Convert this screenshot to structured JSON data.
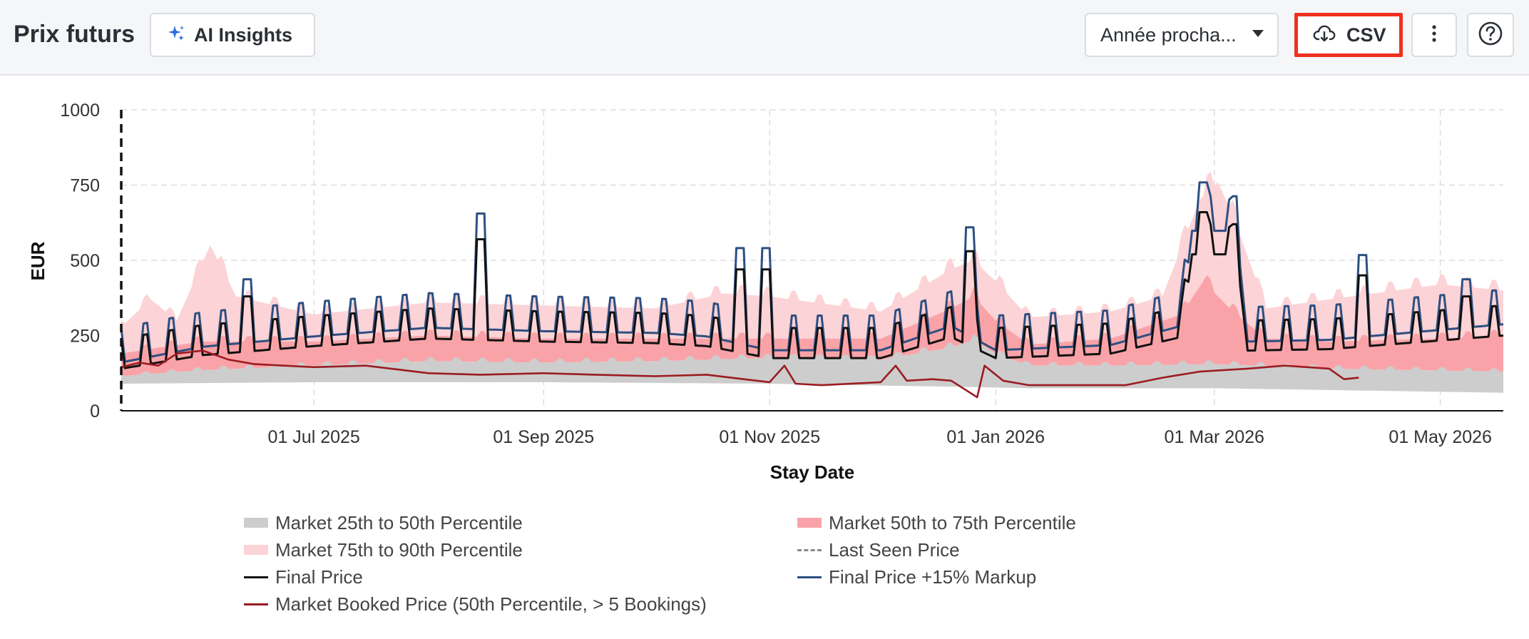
{
  "header": {
    "title": "Prix futurs",
    "ai_button_label": "AI Insights",
    "period_select_value": "Année procha...",
    "csv_button_label": "CSV"
  },
  "icons": {
    "ai": "sparkles-icon",
    "period": "caret-down-icon",
    "csv": "cloud-download-icon",
    "more": "kebab-menu-icon",
    "help": "question-circle-icon"
  },
  "colors": {
    "p25_50": "#cdcdcd",
    "p50_75": "#f9a3a8",
    "p75_90": "#fcd3d6",
    "final": "#111111",
    "markup": "#2d4f82",
    "booked": "#9b1c22",
    "last_seen": "#8a8a8a",
    "highlight": "#f0301e"
  },
  "chart_data": {
    "type": "line",
    "xlabel": "Stay Date",
    "ylabel": "EUR",
    "x_range": [
      "2025-05-10",
      "2026-05-18"
    ],
    "ylim": [
      0,
      1000
    ],
    "yticks": [
      0,
      250,
      500,
      750,
      1000
    ],
    "xticks": [
      {
        "value": "2025-07-01",
        "label": "01 Jul 2025"
      },
      {
        "value": "2025-09-01",
        "label": "01 Sep 2025"
      },
      {
        "value": "2025-11-01",
        "label": "01 Nov 2025"
      },
      {
        "value": "2026-01-01",
        "label": "01 Jan 2026"
      },
      {
        "value": "2026-03-01",
        "label": "01 Mar 2026"
      },
      {
        "value": "2026-05-01",
        "label": "01 May 2026"
      }
    ],
    "grid": true,
    "today_marker": "2025-05-10",
    "legend_position": "bottom",
    "series": [
      {
        "name": "Market 25th to 50th Percentile",
        "kind": "band",
        "lower_points": [
          [
            "2025-05-10",
            90
          ],
          [
            "2025-07-01",
            95
          ],
          [
            "2025-09-01",
            95
          ],
          [
            "2025-11-01",
            90
          ],
          [
            "2025-12-20",
            80
          ],
          [
            "2026-01-10",
            75
          ],
          [
            "2026-03-01",
            75
          ],
          [
            "2026-05-18",
            60
          ]
        ],
        "upper_points": [
          [
            "2025-05-10",
            115
          ],
          [
            "2025-06-01",
            135
          ],
          [
            "2025-07-01",
            150
          ],
          [
            "2025-08-01",
            165
          ],
          [
            "2025-09-01",
            160
          ],
          [
            "2025-10-01",
            165
          ],
          [
            "2025-11-01",
            175
          ],
          [
            "2025-12-01",
            170
          ],
          [
            "2025-12-20",
            210
          ],
          [
            "2025-12-26",
            235
          ],
          [
            "2026-01-01",
            190
          ],
          [
            "2026-01-10",
            150
          ],
          [
            "2026-02-01",
            150
          ],
          [
            "2026-03-01",
            155
          ],
          [
            "2026-04-01",
            140
          ],
          [
            "2026-05-18",
            130
          ]
        ]
      },
      {
        "name": "Market 50th to 75th Percentile",
        "kind": "band",
        "lower_points": [
          [
            "2025-05-10",
            115
          ],
          [
            "2025-06-01",
            135
          ],
          [
            "2025-07-01",
            150
          ],
          [
            "2025-08-01",
            165
          ],
          [
            "2025-09-01",
            160
          ],
          [
            "2025-10-01",
            165
          ],
          [
            "2025-11-01",
            175
          ],
          [
            "2025-12-01",
            170
          ],
          [
            "2025-12-20",
            210
          ],
          [
            "2025-12-26",
            235
          ],
          [
            "2026-01-01",
            190
          ],
          [
            "2026-01-10",
            150
          ],
          [
            "2026-02-01",
            150
          ],
          [
            "2026-03-01",
            155
          ],
          [
            "2026-04-01",
            140
          ],
          [
            "2026-05-18",
            130
          ]
        ],
        "upper_points": [
          [
            "2025-05-10",
            190
          ],
          [
            "2025-05-20",
            210
          ],
          [
            "2025-06-01",
            230
          ],
          [
            "2025-07-01",
            230
          ],
          [
            "2025-08-01",
            250
          ],
          [
            "2025-09-01",
            240
          ],
          [
            "2025-10-01",
            240
          ],
          [
            "2025-11-01",
            240
          ],
          [
            "2025-12-01",
            240
          ],
          [
            "2025-12-20",
            340
          ],
          [
            "2025-12-26",
            380
          ],
          [
            "2026-01-01",
            300
          ],
          [
            "2026-01-10",
            220
          ],
          [
            "2026-02-01",
            240
          ],
          [
            "2026-02-20",
            320
          ],
          [
            "2026-02-26",
            430
          ],
          [
            "2026-03-06",
            330
          ],
          [
            "2026-03-15",
            240
          ],
          [
            "2026-04-01",
            230
          ],
          [
            "2026-05-01",
            240
          ],
          [
            "2026-05-18",
            250
          ]
        ]
      },
      {
        "name": "Market 75th to 90th Percentile",
        "kind": "band",
        "lower_points": [
          [
            "2025-05-10",
            190
          ],
          [
            "2025-05-20",
            210
          ],
          [
            "2025-06-01",
            230
          ],
          [
            "2025-07-01",
            230
          ],
          [
            "2025-08-01",
            250
          ],
          [
            "2025-09-01",
            240
          ],
          [
            "2025-10-01",
            240
          ],
          [
            "2025-11-01",
            240
          ],
          [
            "2025-12-01",
            240
          ],
          [
            "2025-12-20",
            340
          ],
          [
            "2025-12-26",
            380
          ],
          [
            "2026-01-01",
            300
          ],
          [
            "2026-01-10",
            220
          ],
          [
            "2026-02-01",
            240
          ],
          [
            "2026-02-20",
            320
          ],
          [
            "2026-02-26",
            430
          ],
          [
            "2026-03-06",
            330
          ],
          [
            "2026-03-15",
            240
          ],
          [
            "2026-04-01",
            230
          ],
          [
            "2026-05-01",
            240
          ],
          [
            "2026-05-18",
            250
          ]
        ],
        "upper_points": [
          [
            "2025-05-10",
            280
          ],
          [
            "2025-05-18",
            370
          ],
          [
            "2025-05-25",
            300
          ],
          [
            "2025-06-03",
            550
          ],
          [
            "2025-06-10",
            380
          ],
          [
            "2025-07-01",
            320
          ],
          [
            "2025-08-01",
            360
          ],
          [
            "2025-09-01",
            350
          ],
          [
            "2025-10-01",
            340
          ],
          [
            "2025-10-20",
            390
          ],
          [
            "2025-11-01",
            380
          ],
          [
            "2025-12-01",
            330
          ],
          [
            "2025-12-20",
            470
          ],
          [
            "2025-12-26",
            500
          ],
          [
            "2026-01-01",
            430
          ],
          [
            "2026-01-10",
            310
          ],
          [
            "2026-02-01",
            330
          ],
          [
            "2026-02-15",
            380
          ],
          [
            "2026-02-25",
            700
          ],
          [
            "2026-03-02",
            760
          ],
          [
            "2026-03-06",
            650
          ],
          [
            "2026-03-15",
            340
          ],
          [
            "2026-04-01",
            370
          ],
          [
            "2026-05-01",
            420
          ],
          [
            "2026-05-18",
            400
          ]
        ]
      },
      {
        "name": "Last Seen Price",
        "kind": "dashed",
        "points": []
      },
      {
        "name": "Final Price",
        "kind": "line",
        "base_points": [
          [
            "2025-05-10",
            140
          ],
          [
            "2025-06-01",
            185
          ],
          [
            "2025-07-01",
            215
          ],
          [
            "2025-08-01",
            240
          ],
          [
            "2025-09-01",
            230
          ],
          [
            "2025-10-01",
            225
          ],
          [
            "2025-10-15",
            215
          ],
          [
            "2025-11-01",
            175
          ],
          [
            "2025-12-01",
            175
          ],
          [
            "2025-12-20",
            245
          ],
          [
            "2026-01-01",
            175
          ],
          [
            "2026-02-01",
            190
          ],
          [
            "2026-02-20",
            245
          ],
          [
            "2026-02-23",
            520
          ],
          [
            "2026-03-07",
            520
          ],
          [
            "2026-03-10",
            200
          ],
          [
            "2026-04-01",
            205
          ],
          [
            "2026-05-18",
            250
          ]
        ],
        "weekend_peak": 100,
        "special_peaks": [
          [
            "2025-06-13",
            380
          ],
          [
            "2025-08-15",
            570
          ],
          [
            "2025-10-24",
            470
          ],
          [
            "2025-10-31",
            470
          ],
          [
            "2025-12-25",
            530
          ],
          [
            "2026-02-26",
            660
          ],
          [
            "2026-03-06",
            610
          ],
          [
            "2026-04-10",
            450
          ],
          [
            "2026-05-08",
            380
          ]
        ]
      },
      {
        "name": "Final Price +15% Markup",
        "kind": "line",
        "factor_of_final_price": 1.15
      },
      {
        "name": "Market Booked Price (50th Percentile, > 5 Bookings)",
        "kind": "line",
        "points": [
          [
            "2025-05-10",
            145
          ],
          [
            "2025-05-15",
            160
          ],
          [
            "2025-05-20",
            150
          ],
          [
            "2025-05-25",
            190
          ],
          [
            "2025-06-01",
            200
          ],
          [
            "2025-06-08",
            170
          ],
          [
            "2025-06-15",
            155
          ],
          [
            "2025-07-01",
            145
          ],
          [
            "2025-07-15",
            150
          ],
          [
            "2025-08-01",
            125
          ],
          [
            "2025-08-15",
            120
          ],
          [
            "2025-09-01",
            125
          ],
          [
            "2025-09-15",
            120
          ],
          [
            "2025-10-01",
            115
          ],
          [
            "2025-10-15",
            120
          ],
          [
            "2025-10-25",
            105
          ],
          [
            "2025-11-01",
            95
          ],
          [
            "2025-11-05",
            150
          ],
          [
            "2025-11-08",
            90
          ],
          [
            "2025-11-15",
            85
          ],
          [
            "2025-12-01",
            95
          ],
          [
            "2025-12-05",
            150
          ],
          [
            "2025-12-08",
            100
          ],
          [
            "2025-12-15",
            105
          ],
          [
            "2025-12-20",
            100
          ],
          [
            "2025-12-27",
            45
          ],
          [
            "2025-12-29",
            150
          ],
          [
            "2026-01-03",
            100
          ],
          [
            "2026-01-10",
            85
          ],
          [
            "2026-01-25",
            85
          ],
          [
            "2026-02-05",
            85
          ],
          [
            "2026-02-15",
            110
          ],
          [
            "2026-02-25",
            130
          ],
          [
            "2026-03-10",
            140
          ],
          [
            "2026-03-20",
            150
          ],
          [
            "2026-04-01",
            140
          ],
          [
            "2026-04-05",
            105
          ],
          [
            "2026-04-09",
            110
          ]
        ]
      }
    ]
  },
  "legend": [
    {
      "label": "Market 25th to 50th Percentile",
      "swatch": "band",
      "color": "#cdcdcd"
    },
    {
      "label": "Market 50th to 75th Percentile",
      "swatch": "band",
      "color": "#f9a3a8"
    },
    {
      "label": "Market 75th to 90th Percentile",
      "swatch": "band",
      "color": "#fcd3d6"
    },
    {
      "label": "Last Seen Price",
      "swatch": "dash",
      "color": "#8a8a8a"
    },
    {
      "label": "Final Price",
      "swatch": "line",
      "color": "#111111"
    },
    {
      "label": "Final Price +15% Markup",
      "swatch": "line",
      "color": "#2d4f82"
    },
    {
      "label": "Market Booked Price (50th Percentile, > 5 Bookings)",
      "swatch": "line",
      "color": "#9b1c22"
    }
  ]
}
